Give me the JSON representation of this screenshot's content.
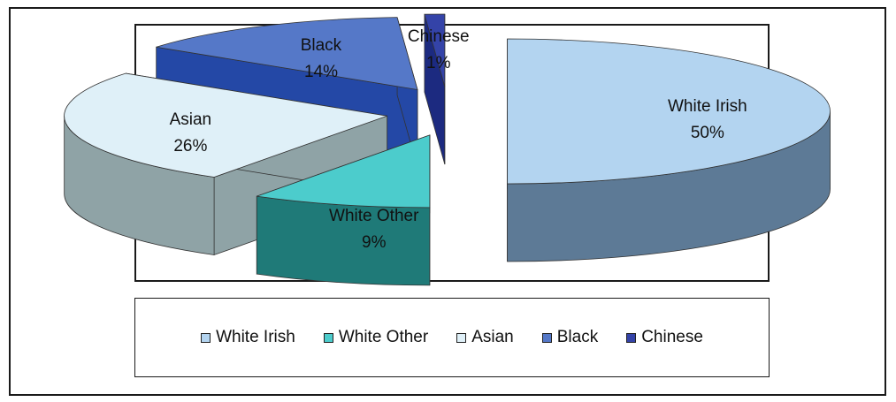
{
  "chart_data": {
    "type": "pie",
    "title": "",
    "three_d": true,
    "exploded": true,
    "slices": [
      {
        "label": "White Irish",
        "value": 50,
        "value_label": "50%",
        "color": "#b3d4f0",
        "side_color": "#5d7a96"
      },
      {
        "label": "White Other",
        "value": 9,
        "value_label": "9%",
        "color": "#4ccccc",
        "side_color": "#1f7a78"
      },
      {
        "label": "Asian",
        "value": 26,
        "value_label": "26%",
        "color": "#dff0f8",
        "side_color": "#8fa3a6"
      },
      {
        "label": "Black",
        "value": 14,
        "value_label": "14%",
        "color": "#5578c8",
        "side_color": "#2448a6"
      },
      {
        "label": "Chinese",
        "value": 1,
        "value_label": "1%",
        "color": "#3443a8",
        "side_color": "#1c2a80"
      }
    ],
    "legend": {
      "placement": "bottom",
      "entries": [
        "White Irish",
        "White Other",
        "Asian",
        "Black",
        "Chinese"
      ]
    }
  }
}
